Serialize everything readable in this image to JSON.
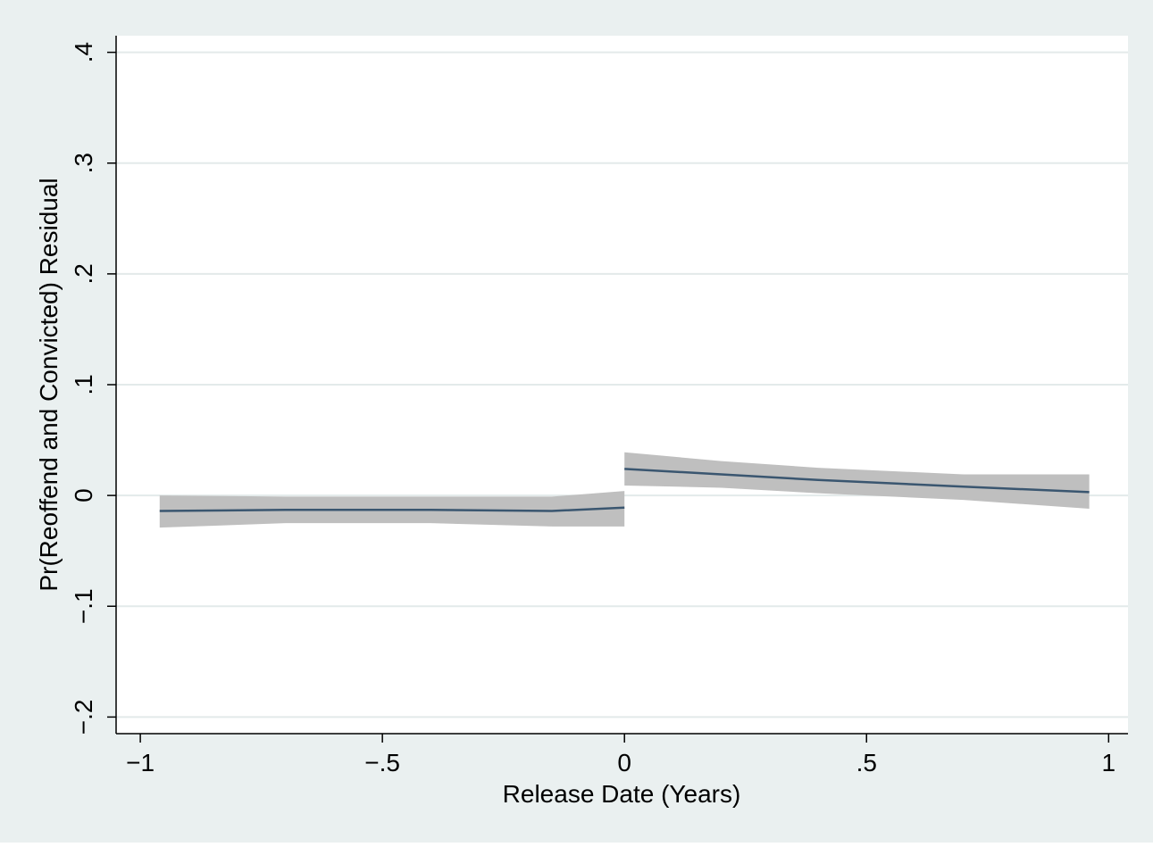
{
  "chart_data": {
    "type": "line",
    "title": "",
    "xlabel": "Release Date (Years)",
    "ylabel": "Pr(Reoffend and Convicted) Residual",
    "xlim": [
      -1.05,
      1.04
    ],
    "ylim": [
      -0.215,
      0.415
    ],
    "xticks": [
      -1,
      -0.5,
      0,
      0.5,
      1
    ],
    "xtick_labels": [
      "−1",
      "−.5",
      "0",
      ".5",
      "1"
    ],
    "yticks": [
      -0.2,
      -0.1,
      0,
      0.1,
      0.2,
      0.3,
      0.4
    ],
    "ytick_labels": [
      "−.2",
      "−.1",
      "0",
      ".1",
      ".2",
      ".3",
      ".4"
    ],
    "grid": true,
    "legend": "none",
    "colors": {
      "outer_background": "#eaf0f0",
      "plot_background": "#ffffff",
      "grid": "#e3eaea",
      "ci_band": "#bfbfbf",
      "fit_line": "#3a5670"
    },
    "series": [
      {
        "segment": "before",
        "x": [
          -0.96,
          -0.7,
          -0.4,
          -0.15,
          0.0
        ],
        "y": [
          -0.014,
          -0.013,
          -0.013,
          -0.014,
          -0.011
        ],
        "ci_lower": [
          -0.029,
          -0.025,
          -0.025,
          -0.028,
          -0.028
        ],
        "ci_upper": [
          0.0,
          -0.001,
          -0.001,
          -0.001,
          0.004
        ]
      },
      {
        "segment": "after",
        "x": [
          0.0,
          0.2,
          0.4,
          0.7,
          0.96
        ],
        "y": [
          0.024,
          0.019,
          0.014,
          0.008,
          0.003
        ],
        "ci_lower": [
          0.009,
          0.007,
          0.002,
          -0.004,
          -0.012
        ],
        "ci_upper": [
          0.039,
          0.031,
          0.025,
          0.019,
          0.019
        ]
      }
    ]
  }
}
